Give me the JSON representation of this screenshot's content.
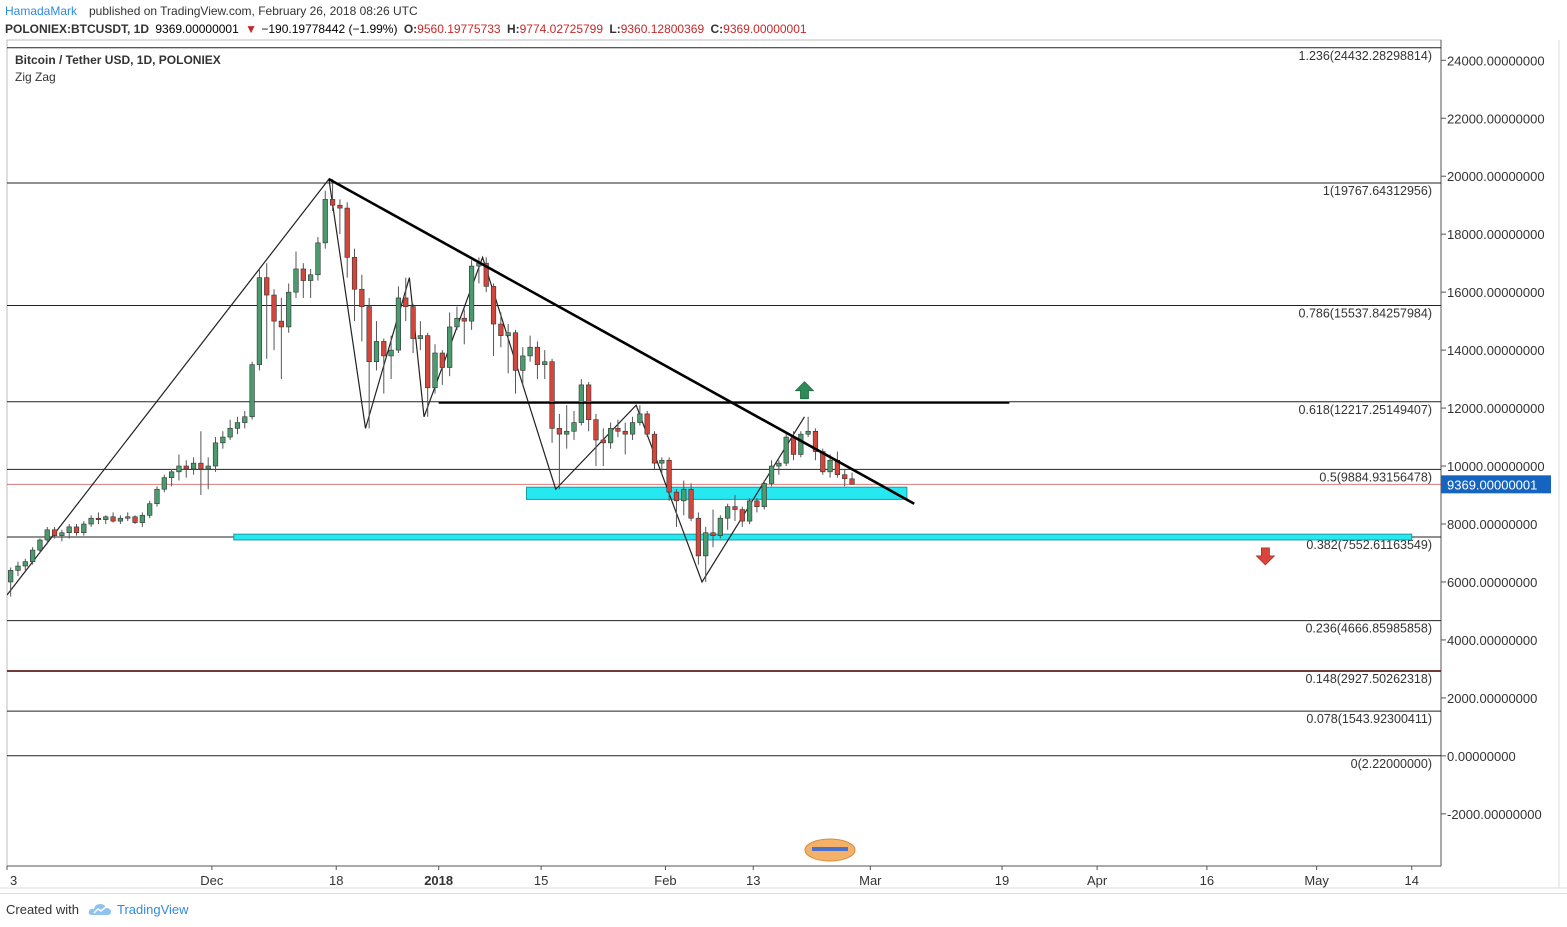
{
  "header": {
    "author": "HamadaMark",
    "published": "published on TradingView.com, February 26, 2018 08:26 UTC"
  },
  "ohlc": {
    "symbol": "POLONIEX:BTCUSDT, 1D",
    "price": "9369.00000001",
    "change": "−190.19778442 (−1.99%)",
    "open_label": "O:",
    "open": "9560.19775733",
    "high_label": "H:",
    "high": "9774.02725799",
    "low_label": "L:",
    "low": "9360.12800369",
    "close_label": "C:",
    "close": "9369.00000001"
  },
  "legend": {
    "title": "Bitcoin / Tether USD, 1D, POLONIEX",
    "indicator": "Zig Zag"
  },
  "footer": {
    "created_with": "Created with",
    "brand": "TradingView"
  },
  "colors": {
    "up": "#4a9b6e",
    "down": "#d4453a",
    "zone": "#26e8f0",
    "price_tag": "#1565c0",
    "accent": "#2f8be0"
  },
  "chart_data": {
    "type": "candlestick",
    "title": "Bitcoin / Tether USD, 1D, POLONIEX",
    "y_axis": {
      "ticks": [
        "24000.00000000",
        "22000.00000000",
        "20000.00000000",
        "18000.00000000",
        "16000.00000000",
        "14000.00000000",
        "12000.00000000",
        "10000.00000000",
        "8000.00000000",
        "6000.00000000",
        "4000.00000000",
        "2000.00000000",
        "0.00000000",
        "-2000.00000000"
      ],
      "tick_values": [
        24000,
        22000,
        20000,
        18000,
        16000,
        14000,
        12000,
        10000,
        8000,
        6000,
        4000,
        2000,
        0,
        -2000
      ],
      "range": [
        -3800,
        24700
      ]
    },
    "x_axis": {
      "labels": [
        {
          "text": "3",
          "date": "2017-11-03"
        },
        {
          "text": "Dec",
          "date": "2017-12-01"
        },
        {
          "text": "18",
          "date": "2017-12-18"
        },
        {
          "text": "2018",
          "date": "2018-01-01"
        },
        {
          "text": "15",
          "date": "2018-01-15"
        },
        {
          "text": "Feb",
          "date": "2018-02-01"
        },
        {
          "text": "13",
          "date": "2018-02-13"
        },
        {
          "text": "Mar",
          "date": "2018-03-01"
        },
        {
          "text": "19",
          "date": "2018-03-19"
        },
        {
          "text": "Apr",
          "date": "2018-04-01"
        },
        {
          "text": "16",
          "date": "2018-04-16"
        },
        {
          "text": "May",
          "date": "2018-05-01"
        },
        {
          "text": "14",
          "date": "2018-05-14"
        }
      ],
      "range": [
        "2017-11-03",
        "2018-05-18"
      ]
    },
    "last_price": {
      "value": 9369,
      "label": "9369.00000001"
    },
    "fib_levels": [
      {
        "label": "1.236(24432.28298814)",
        "value": 24432.28
      },
      {
        "label": "1(19767.64312956)",
        "value": 19767.64
      },
      {
        "label": "0.786(15537.84257984)",
        "value": 15537.84
      },
      {
        "label": "0.618(12217.25149407)",
        "value": 12217.25
      },
      {
        "label": "0.5(9884.93156478)",
        "value": 9884.93
      },
      {
        "label": "0.382(7552.61163549)",
        "value": 7552.61
      },
      {
        "label": "0.236(4666.85985858)",
        "value": 4666.86
      },
      {
        "label": "0.148(2927.50262318)",
        "value": 2927.5
      },
      {
        "label": "0.078(1543.92300411)",
        "value": 1543.92
      },
      {
        "label": "0(2.22000000)",
        "value": 2.22
      }
    ],
    "trendline": {
      "from": {
        "date": "2017-12-17",
        "value": 19900
      },
      "to": {
        "date": "2018-03-07",
        "value": 8700
      }
    },
    "horizontal_line": {
      "from": "2018-01-01",
      "to": "2018-03-20",
      "value": 12180
    },
    "zones": [
      {
        "from": "2018-01-13",
        "to": "2018-03-06",
        "low": 8850,
        "high": 9270
      },
      {
        "from": "2017-12-04",
        "to": "2018-05-14",
        "low": 7450,
        "high": 7650
      }
    ],
    "arrows": [
      {
        "dir": "up",
        "date": "2018-02-20",
        "value": 12600
      },
      {
        "dir": "down",
        "date": "2018-04-24",
        "value": 6900
      }
    ],
    "zigzag": [
      {
        "date": "2017-11-03",
        "value": 5550
      },
      {
        "date": "2017-12-17",
        "value": 19900
      },
      {
        "date": "2017-12-22",
        "value": 11300
      },
      {
        "date": "2017-12-28",
        "value": 16500
      },
      {
        "date": "2017-12-30",
        "value": 11700
      },
      {
        "date": "2018-01-07",
        "value": 17200
      },
      {
        "date": "2018-01-17",
        "value": 9200
      },
      {
        "date": "2018-01-28",
        "value": 12100
      },
      {
        "date": "2018-02-06",
        "value": 6000
      },
      {
        "date": "2018-02-20",
        "value": 11700
      }
    ],
    "candles": [
      {
        "d": "2017-11-03",
        "o": 6000,
        "h": 6500,
        "l": 5500,
        "c": 6400
      },
      {
        "d": "2017-11-04",
        "o": 6400,
        "h": 6700,
        "l": 6200,
        "c": 6550
      },
      {
        "d": "2017-11-05",
        "o": 6550,
        "h": 6800,
        "l": 6400,
        "c": 6700
      },
      {
        "d": "2017-11-06",
        "o": 6700,
        "h": 7200,
        "l": 6600,
        "c": 7100
      },
      {
        "d": "2017-11-07",
        "o": 7100,
        "h": 7500,
        "l": 7000,
        "c": 7450
      },
      {
        "d": "2017-11-08",
        "o": 7450,
        "h": 7900,
        "l": 7300,
        "c": 7800
      },
      {
        "d": "2017-11-09",
        "o": 7800,
        "h": 7900,
        "l": 7500,
        "c": 7600
      },
      {
        "d": "2017-11-10",
        "o": 7600,
        "h": 7800,
        "l": 7400,
        "c": 7700
      },
      {
        "d": "2017-11-11",
        "o": 7700,
        "h": 8000,
        "l": 7500,
        "c": 7900
      },
      {
        "d": "2017-11-12",
        "o": 7900,
        "h": 8000,
        "l": 7600,
        "c": 7700
      },
      {
        "d": "2017-11-13",
        "o": 7700,
        "h": 8100,
        "l": 7600,
        "c": 8000
      },
      {
        "d": "2017-11-14",
        "o": 8000,
        "h": 8300,
        "l": 7900,
        "c": 8200
      },
      {
        "d": "2017-11-15",
        "o": 8200,
        "h": 8400,
        "l": 8000,
        "c": 8150
      },
      {
        "d": "2017-11-16",
        "o": 8150,
        "h": 8300,
        "l": 8000,
        "c": 8250
      },
      {
        "d": "2017-11-17",
        "o": 8250,
        "h": 8400,
        "l": 8050,
        "c": 8100
      },
      {
        "d": "2017-11-18",
        "o": 8100,
        "h": 8300,
        "l": 8000,
        "c": 8200
      },
      {
        "d": "2017-11-19",
        "o": 8200,
        "h": 8400,
        "l": 8100,
        "c": 8250
      },
      {
        "d": "2017-11-20",
        "o": 8250,
        "h": 8300,
        "l": 8000,
        "c": 8050
      },
      {
        "d": "2017-11-21",
        "o": 8050,
        "h": 8400,
        "l": 7900,
        "c": 8300
      },
      {
        "d": "2017-11-22",
        "o": 8300,
        "h": 8800,
        "l": 8200,
        "c": 8700
      },
      {
        "d": "2017-11-23",
        "o": 8700,
        "h": 9300,
        "l": 8600,
        "c": 9200
      },
      {
        "d": "2017-11-24",
        "o": 9200,
        "h": 9700,
        "l": 9100,
        "c": 9600
      },
      {
        "d": "2017-11-25",
        "o": 9600,
        "h": 9900,
        "l": 9300,
        "c": 9800
      },
      {
        "d": "2017-11-26",
        "o": 9800,
        "h": 10400,
        "l": 9500,
        "c": 10000
      },
      {
        "d": "2017-11-27",
        "o": 10000,
        "h": 10200,
        "l": 9600,
        "c": 9900
      },
      {
        "d": "2017-11-28",
        "o": 9900,
        "h": 10300,
        "l": 9700,
        "c": 10100
      },
      {
        "d": "2017-11-29",
        "o": 10100,
        "h": 11200,
        "l": 9000,
        "c": 9900
      },
      {
        "d": "2017-11-30",
        "o": 9900,
        "h": 10300,
        "l": 9200,
        "c": 10000
      },
      {
        "d": "2017-12-01",
        "o": 10000,
        "h": 11000,
        "l": 9800,
        "c": 10800
      },
      {
        "d": "2017-12-02",
        "o": 10800,
        "h": 11200,
        "l": 10600,
        "c": 11000
      },
      {
        "d": "2017-12-03",
        "o": 11000,
        "h": 11600,
        "l": 10900,
        "c": 11300
      },
      {
        "d": "2017-12-04",
        "o": 11300,
        "h": 11700,
        "l": 11100,
        "c": 11500
      },
      {
        "d": "2017-12-05",
        "o": 11500,
        "h": 11900,
        "l": 11300,
        "c": 11700
      },
      {
        "d": "2017-12-06",
        "o": 11700,
        "h": 13600,
        "l": 11600,
        "c": 13500
      },
      {
        "d": "2017-12-07",
        "o": 13500,
        "h": 16800,
        "l": 13300,
        "c": 16500
      },
      {
        "d": "2017-12-08",
        "o": 16500,
        "h": 17000,
        "l": 13700,
        "c": 15900
      },
      {
        "d": "2017-12-09",
        "o": 15900,
        "h": 16100,
        "l": 14000,
        "c": 15000
      },
      {
        "d": "2017-12-10",
        "o": 15000,
        "h": 15800,
        "l": 13000,
        "c": 14800
      },
      {
        "d": "2017-12-11",
        "o": 14800,
        "h": 16300,
        "l": 14600,
        "c": 16000
      },
      {
        "d": "2017-12-12",
        "o": 16000,
        "h": 17400,
        "l": 15800,
        "c": 16800
      },
      {
        "d": "2017-12-13",
        "o": 16800,
        "h": 17000,
        "l": 15800,
        "c": 16400
      },
      {
        "d": "2017-12-14",
        "o": 16400,
        "h": 16800,
        "l": 15800,
        "c": 16600
      },
      {
        "d": "2017-12-15",
        "o": 16600,
        "h": 17900,
        "l": 16400,
        "c": 17700
      },
      {
        "d": "2017-12-16",
        "o": 17700,
        "h": 19500,
        "l": 17500,
        "c": 19200
      },
      {
        "d": "2017-12-17",
        "o": 19200,
        "h": 19900,
        "l": 18800,
        "c": 19000
      },
      {
        "d": "2017-12-18",
        "o": 19000,
        "h": 19200,
        "l": 18000,
        "c": 18900
      },
      {
        "d": "2017-12-19",
        "o": 18900,
        "h": 19100,
        "l": 16500,
        "c": 17200
      },
      {
        "d": "2017-12-20",
        "o": 17200,
        "h": 17500,
        "l": 15000,
        "c": 16100
      },
      {
        "d": "2017-12-21",
        "o": 16100,
        "h": 16600,
        "l": 14300,
        "c": 15500
      },
      {
        "d": "2017-12-22",
        "o": 15500,
        "h": 15800,
        "l": 11300,
        "c": 13600
      },
      {
        "d": "2017-12-23",
        "o": 13600,
        "h": 15000,
        "l": 13300,
        "c": 14300
      },
      {
        "d": "2017-12-24",
        "o": 14300,
        "h": 14400,
        "l": 12500,
        "c": 13800
      },
      {
        "d": "2017-12-25",
        "o": 13800,
        "h": 14500,
        "l": 13000,
        "c": 14000
      },
      {
        "d": "2017-12-26",
        "o": 14000,
        "h": 16200,
        "l": 13900,
        "c": 15800
      },
      {
        "d": "2017-12-27",
        "o": 15800,
        "h": 16500,
        "l": 15000,
        "c": 15500
      },
      {
        "d": "2017-12-28",
        "o": 15500,
        "h": 15600,
        "l": 13900,
        "c": 14400
      },
      {
        "d": "2017-12-29",
        "o": 14400,
        "h": 15000,
        "l": 14000,
        "c": 14500
      },
      {
        "d": "2017-12-30",
        "o": 14500,
        "h": 14600,
        "l": 11700,
        "c": 12700
      },
      {
        "d": "2017-12-31",
        "o": 12700,
        "h": 14200,
        "l": 12500,
        "c": 13900
      },
      {
        "d": "2018-01-01",
        "o": 13900,
        "h": 14000,
        "l": 12800,
        "c": 13400
      },
      {
        "d": "2018-01-02",
        "o": 13400,
        "h": 15300,
        "l": 13100,
        "c": 14800
      },
      {
        "d": "2018-01-03",
        "o": 14800,
        "h": 15500,
        "l": 14700,
        "c": 15100
      },
      {
        "d": "2018-01-04",
        "o": 15100,
        "h": 15400,
        "l": 14200,
        "c": 15000
      },
      {
        "d": "2018-01-05",
        "o": 15000,
        "h": 17100,
        "l": 14700,
        "c": 16900
      },
      {
        "d": "2018-01-06",
        "o": 16900,
        "h": 17200,
        "l": 16300,
        "c": 17000
      },
      {
        "d": "2018-01-07",
        "o": 17000,
        "h": 17200,
        "l": 16000,
        "c": 16200
      },
      {
        "d": "2018-01-08",
        "o": 16200,
        "h": 16300,
        "l": 13800,
        "c": 14900
      },
      {
        "d": "2018-01-09",
        "o": 14900,
        "h": 15300,
        "l": 14100,
        "c": 14500
      },
      {
        "d": "2018-01-10",
        "o": 14500,
        "h": 14900,
        "l": 13200,
        "c": 14600
      },
      {
        "d": "2018-01-11",
        "o": 14600,
        "h": 14700,
        "l": 12500,
        "c": 13300
      },
      {
        "d": "2018-01-12",
        "o": 13300,
        "h": 14100,
        "l": 12800,
        "c": 13800
      },
      {
        "d": "2018-01-13",
        "o": 13800,
        "h": 14500,
        "l": 13600,
        "c": 14100
      },
      {
        "d": "2018-01-14",
        "o": 14100,
        "h": 14300,
        "l": 13000,
        "c": 13500
      },
      {
        "d": "2018-01-15",
        "o": 13500,
        "h": 14000,
        "l": 13000,
        "c": 13600
      },
      {
        "d": "2018-01-16",
        "o": 13600,
        "h": 13700,
        "l": 10800,
        "c": 11300
      },
      {
        "d": "2018-01-17",
        "o": 11300,
        "h": 11800,
        "l": 9200,
        "c": 11100
      },
      {
        "d": "2018-01-18",
        "o": 11100,
        "h": 12100,
        "l": 10600,
        "c": 11200
      },
      {
        "d": "2018-01-19",
        "o": 11200,
        "h": 11900,
        "l": 10900,
        "c": 11500
      },
      {
        "d": "2018-01-20",
        "o": 11500,
        "h": 13000,
        "l": 11400,
        "c": 12800
      },
      {
        "d": "2018-01-21",
        "o": 12800,
        "h": 12900,
        "l": 11200,
        "c": 11600
      },
      {
        "d": "2018-01-22",
        "o": 11600,
        "h": 11800,
        "l": 10000,
        "c": 10900
      },
      {
        "d": "2018-01-23",
        "o": 10900,
        "h": 11300,
        "l": 10000,
        "c": 10800
      },
      {
        "d": "2018-01-24",
        "o": 10800,
        "h": 11500,
        "l": 10600,
        "c": 11300
      },
      {
        "d": "2018-01-25",
        "o": 11300,
        "h": 11600,
        "l": 11000,
        "c": 11200
      },
      {
        "d": "2018-01-26",
        "o": 11200,
        "h": 11500,
        "l": 10400,
        "c": 11100
      },
      {
        "d": "2018-01-27",
        "o": 11100,
        "h": 11700,
        "l": 10900,
        "c": 11500
      },
      {
        "d": "2018-01-28",
        "o": 11500,
        "h": 12100,
        "l": 11400,
        "c": 11800
      },
      {
        "d": "2018-01-29",
        "o": 11800,
        "h": 11900,
        "l": 11000,
        "c": 11100
      },
      {
        "d": "2018-01-30",
        "o": 11100,
        "h": 11200,
        "l": 9900,
        "c": 10100
      },
      {
        "d": "2018-01-31",
        "o": 10100,
        "h": 10300,
        "l": 9700,
        "c": 10200
      },
      {
        "d": "2018-02-01",
        "o": 10200,
        "h": 10300,
        "l": 8800,
        "c": 9100
      },
      {
        "d": "2018-02-02",
        "o": 9100,
        "h": 9200,
        "l": 7900,
        "c": 8800
      },
      {
        "d": "2018-02-03",
        "o": 8800,
        "h": 9500,
        "l": 8300,
        "c": 9200
      },
      {
        "d": "2018-02-04",
        "o": 9200,
        "h": 9400,
        "l": 8100,
        "c": 8200
      },
      {
        "d": "2018-02-05",
        "o": 8200,
        "h": 8400,
        "l": 6600,
        "c": 6900
      },
      {
        "d": "2018-02-06",
        "o": 6900,
        "h": 7900,
        "l": 6000,
        "c": 7700
      },
      {
        "d": "2018-02-07",
        "o": 7700,
        "h": 8500,
        "l": 7200,
        "c": 7600
      },
      {
        "d": "2018-02-08",
        "o": 7600,
        "h": 8300,
        "l": 7500,
        "c": 8200
      },
      {
        "d": "2018-02-09",
        "o": 8200,
        "h": 8700,
        "l": 7800,
        "c": 8600
      },
      {
        "d": "2018-02-10",
        "o": 8600,
        "h": 9000,
        "l": 8100,
        "c": 8500
      },
      {
        "d": "2018-02-11",
        "o": 8500,
        "h": 8600,
        "l": 7900,
        "c": 8100
      },
      {
        "d": "2018-02-12",
        "o": 8100,
        "h": 8900,
        "l": 8000,
        "c": 8800
      },
      {
        "d": "2018-02-13",
        "o": 8800,
        "h": 8900,
        "l": 8400,
        "c": 8600
      },
      {
        "d": "2018-02-14",
        "o": 8600,
        "h": 9500,
        "l": 8500,
        "c": 9400
      },
      {
        "d": "2018-02-15",
        "o": 9400,
        "h": 10200,
        "l": 9300,
        "c": 10000
      },
      {
        "d": "2018-02-16",
        "o": 10000,
        "h": 10200,
        "l": 9700,
        "c": 10100
      },
      {
        "d": "2018-02-17",
        "o": 10100,
        "h": 11100,
        "l": 10000,
        "c": 11000
      },
      {
        "d": "2018-02-18",
        "o": 11000,
        "h": 11200,
        "l": 10200,
        "c": 10400
      },
      {
        "d": "2018-02-19",
        "o": 10400,
        "h": 11200,
        "l": 10300,
        "c": 11100
      },
      {
        "d": "2018-02-20",
        "o": 11100,
        "h": 11700,
        "l": 11000,
        "c": 11200
      },
      {
        "d": "2018-02-21",
        "o": 11200,
        "h": 11300,
        "l": 10200,
        "c": 10500
      },
      {
        "d": "2018-02-22",
        "o": 10500,
        "h": 10600,
        "l": 9700,
        "c": 9800
      },
      {
        "d": "2018-02-23",
        "o": 9800,
        "h": 10400,
        "l": 9600,
        "c": 10200
      },
      {
        "d": "2018-02-24",
        "o": 10200,
        "h": 10500,
        "l": 9600,
        "c": 9700
      },
      {
        "d": "2018-02-25",
        "o": 9700,
        "h": 9900,
        "l": 9300,
        "c": 9560
      },
      {
        "d": "2018-02-26",
        "o": 9560,
        "h": 9774,
        "l": 9360,
        "c": 9369
      }
    ]
  }
}
